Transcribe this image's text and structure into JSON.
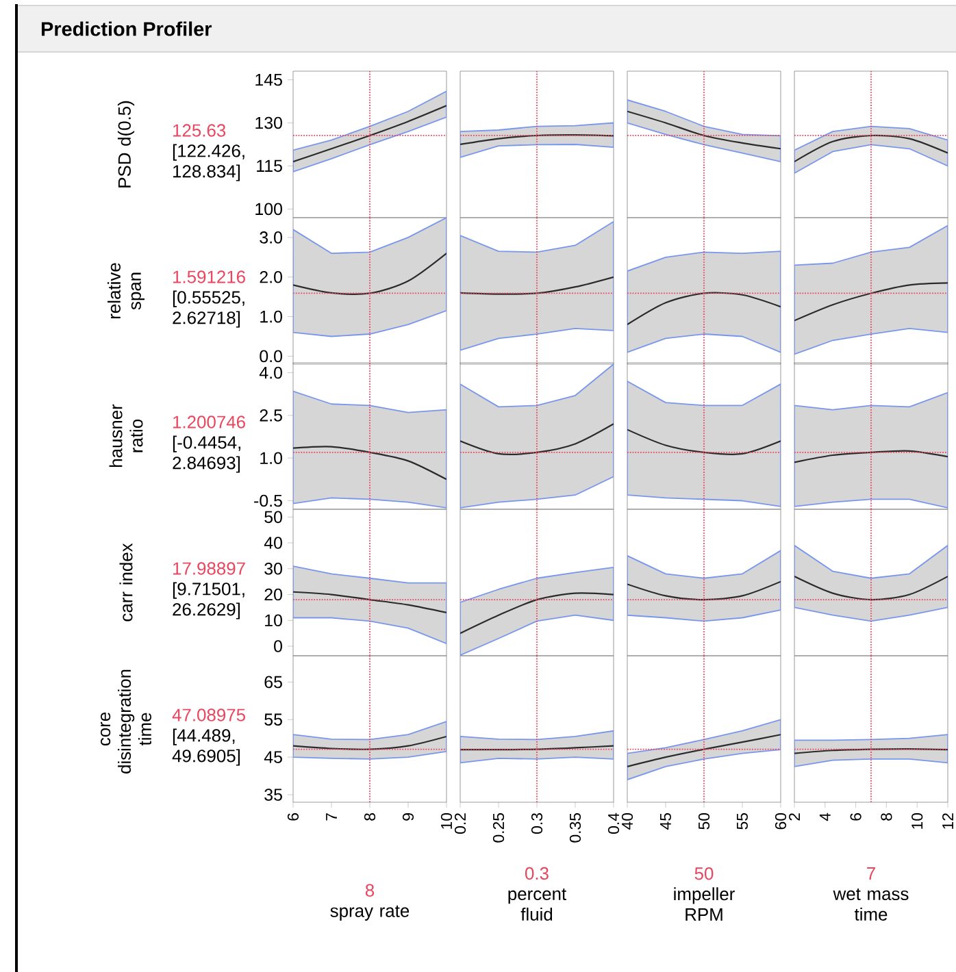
{
  "chart_data": [
    {
      "type": "line",
      "title": "Prediction Profiler",
      "ylabel": "PSD d(0.5)",
      "annotations": [
        "[122.426, 128.834]"
      ],
      "tick_labels": "y",
      "x": [
        6,
        7,
        8,
        9,
        10
      ],
      "xlim": [
        6,
        10
      ],
      "ylim": [
        97,
        148
      ],
      "yticks": [
        100,
        115,
        130,
        145
      ],
      "series": [
        {
          "color": "#2b2b2b",
          "values": [
            116.5,
            121,
            125.6,
            130.5,
            136
          ],
          "lower": [
            113,
            117.5,
            122.4,
            127,
            132
          ],
          "upper": [
            120.5,
            124,
            128.8,
            134,
            141
          ]
        }
      ],
      "ref_lines": [
        {
          "axis": "x",
          "value": 8,
          "color": "#e8475f",
          "line_style": "dotted"
        },
        {
          "axis": "y",
          "value": 125.63,
          "label": "125.63",
          "color": "#e8475f",
          "line_style": "dotted"
        }
      ]
    },
    {
      "type": "line",
      "tick_labels": false,
      "x": [
        0.2,
        0.25,
        0.3,
        0.35,
        0.4
      ],
      "xlim": [
        0.2,
        0.4
      ],
      "ylim": [
        97,
        148
      ],
      "series": [
        {
          "color": "#2b2b2b",
          "values": [
            122.5,
            124.5,
            125.6,
            125.8,
            125.5
          ],
          "lower": [
            118,
            122,
            122.4,
            122.5,
            121.5
          ],
          "upper": [
            127,
            127.5,
            128.8,
            129,
            130
          ]
        }
      ],
      "ref_lines": [
        {
          "axis": "x",
          "value": 0.3,
          "color": "#e8475f",
          "line_style": "dotted"
        },
        {
          "axis": "y",
          "value": 125.63,
          "color": "#e8475f",
          "line_style": "dotted"
        }
      ]
    },
    {
      "type": "line",
      "tick_labels": false,
      "x": [
        40,
        45,
        50,
        55,
        60
      ],
      "xlim": [
        40,
        60
      ],
      "ylim": [
        97,
        148
      ],
      "series": [
        {
          "color": "#2b2b2b",
          "values": [
            134,
            130,
            125.6,
            123,
            121
          ],
          "lower": [
            130,
            126,
            122.4,
            119.5,
            116.5
          ],
          "upper": [
            138,
            134,
            128.8,
            126,
            125.5
          ]
        }
      ],
      "ref_lines": [
        {
          "axis": "x",
          "value": 50,
          "color": "#e8475f",
          "line_style": "dotted"
        },
        {
          "axis": "y",
          "value": 125.63,
          "color": "#e8475f",
          "line_style": "dotted"
        }
      ]
    },
    {
      "type": "line",
      "tick_labels": false,
      "x": [
        2,
        4.5,
        7,
        9.5,
        12
      ],
      "xlim": [
        2,
        12
      ],
      "ylim": [
        97,
        148
      ],
      "series": [
        {
          "color": "#2b2b2b",
          "values": [
            116.5,
            123.5,
            125.6,
            124.5,
            119.5
          ],
          "lower": [
            112.5,
            120,
            122.4,
            121,
            115
          ],
          "upper": [
            120.5,
            127,
            128.8,
            128,
            124
          ]
        }
      ],
      "ref_lines": [
        {
          "axis": "x",
          "value": 7,
          "color": "#e8475f",
          "line_style": "dotted"
        },
        {
          "axis": "y",
          "value": 125.63,
          "color": "#e8475f",
          "line_style": "dotted"
        }
      ]
    },
    {
      "type": "line",
      "ylabel": "relative span",
      "annotations": [
        "[0.55525, 2.62718]"
      ],
      "tick_labels": "y",
      "x": [
        6,
        7,
        8,
        9,
        10
      ],
      "xlim": [
        6,
        10
      ],
      "ylim": [
        -0.2,
        3.5
      ],
      "yticks": [
        {
          "value": 0,
          "label": "0.0"
        },
        {
          "value": 1,
          "label": "1.0"
        },
        {
          "value": 2,
          "label": "2.0"
        },
        {
          "value": 3,
          "label": "3.0"
        }
      ],
      "series": [
        {
          "color": "#2b2b2b",
          "values": [
            1.8,
            1.6,
            1.59,
            1.9,
            2.6
          ],
          "lower": [
            0.6,
            0.5,
            0.56,
            0.8,
            1.15
          ],
          "upper": [
            3.2,
            2.6,
            2.63,
            3.0,
            3.5
          ]
        }
      ],
      "ref_lines": [
        {
          "axis": "x",
          "value": 8,
          "color": "#e8475f",
          "line_style": "dotted"
        },
        {
          "axis": "y",
          "value": 1.591216,
          "label": "1.591216",
          "color": "#e8475f",
          "line_style": "dotted"
        }
      ]
    },
    {
      "type": "line",
      "tick_labels": false,
      "x": [
        0.2,
        0.25,
        0.3,
        0.35,
        0.4
      ],
      "xlim": [
        0.2,
        0.4
      ],
      "ylim": [
        -0.2,
        3.5
      ],
      "series": [
        {
          "color": "#2b2b2b",
          "values": [
            1.6,
            1.57,
            1.59,
            1.75,
            2.0
          ],
          "lower": [
            0.15,
            0.45,
            0.56,
            0.7,
            0.65
          ],
          "upper": [
            3.05,
            2.65,
            2.63,
            2.8,
            3.4
          ]
        }
      ],
      "ref_lines": [
        {
          "axis": "x",
          "value": 0.3,
          "color": "#e8475f",
          "line_style": "dotted"
        },
        {
          "axis": "y",
          "value": 1.591216,
          "color": "#e8475f",
          "line_style": "dotted"
        }
      ]
    },
    {
      "type": "line",
      "tick_labels": false,
      "x": [
        40,
        45,
        50,
        55,
        60
      ],
      "xlim": [
        40,
        60
      ],
      "ylim": [
        -0.2,
        3.5
      ],
      "series": [
        {
          "color": "#2b2b2b",
          "values": [
            0.8,
            1.35,
            1.59,
            1.55,
            1.25
          ],
          "lower": [
            0.1,
            0.45,
            0.56,
            0.5,
            0.1
          ],
          "upper": [
            2.15,
            2.5,
            2.63,
            2.6,
            2.65
          ]
        }
      ],
      "ref_lines": [
        {
          "axis": "x",
          "value": 50,
          "color": "#e8475f",
          "line_style": "dotted"
        },
        {
          "axis": "y",
          "value": 1.591216,
          "color": "#e8475f",
          "line_style": "dotted"
        }
      ]
    },
    {
      "type": "line",
      "tick_labels": false,
      "x": [
        2,
        4.5,
        7,
        9.5,
        12
      ],
      "xlim": [
        2,
        12
      ],
      "ylim": [
        -0.2,
        3.5
      ],
      "series": [
        {
          "color": "#2b2b2b",
          "values": [
            0.9,
            1.3,
            1.59,
            1.8,
            1.85
          ],
          "lower": [
            0.05,
            0.4,
            0.56,
            0.7,
            0.6
          ],
          "upper": [
            2.3,
            2.35,
            2.63,
            2.75,
            3.3
          ]
        }
      ],
      "ref_lines": [
        {
          "axis": "x",
          "value": 7,
          "color": "#e8475f",
          "line_style": "dotted"
        },
        {
          "axis": "y",
          "value": 1.591216,
          "color": "#e8475f",
          "line_style": "dotted"
        }
      ]
    },
    {
      "type": "line",
      "ylabel": "hausner ratio",
      "annotations": [
        "[-0.4454, 2.84693]"
      ],
      "tick_labels": "y",
      "x": [
        6,
        7,
        8,
        9,
        10
      ],
      "xlim": [
        6,
        10
      ],
      "ylim": [
        -0.8,
        4.35
      ],
      "yticks": [
        -0.5,
        {
          "value": 1,
          "label": "1.0"
        },
        2.5,
        {
          "value": 4,
          "label": "4.0"
        }
      ],
      "series": [
        {
          "color": "#2b2b2b",
          "values": [
            1.35,
            1.4,
            1.2,
            0.9,
            0.25
          ],
          "lower": [
            -0.6,
            -0.4,
            -0.45,
            -0.55,
            -0.75
          ],
          "upper": [
            3.35,
            2.9,
            2.85,
            2.6,
            2.7
          ]
        }
      ],
      "ref_lines": [
        {
          "axis": "x",
          "value": 8,
          "color": "#e8475f",
          "line_style": "dotted"
        },
        {
          "axis": "y",
          "value": 1.200746,
          "label": "1.200746",
          "color": "#e8475f",
          "line_style": "dotted"
        }
      ]
    },
    {
      "type": "line",
      "tick_labels": false,
      "x": [
        0.2,
        0.25,
        0.3,
        0.35,
        0.4
      ],
      "xlim": [
        0.2,
        0.4
      ],
      "ylim": [
        -0.8,
        4.35
      ],
      "series": [
        {
          "color": "#2b2b2b",
          "values": [
            1.6,
            1.15,
            1.2,
            1.5,
            2.2
          ],
          "lower": [
            -0.75,
            -0.55,
            -0.45,
            -0.3,
            0.35
          ],
          "upper": [
            3.6,
            2.8,
            2.85,
            3.2,
            4.3
          ]
        }
      ],
      "ref_lines": [
        {
          "axis": "x",
          "value": 0.3,
          "color": "#e8475f",
          "line_style": "dotted"
        },
        {
          "axis": "y",
          "value": 1.200746,
          "color": "#e8475f",
          "line_style": "dotted"
        }
      ]
    },
    {
      "type": "line",
      "tick_labels": false,
      "x": [
        40,
        45,
        50,
        55,
        60
      ],
      "xlim": [
        40,
        60
      ],
      "ylim": [
        -0.8,
        4.35
      ],
      "series": [
        {
          "color": "#2b2b2b",
          "values": [
            2.0,
            1.45,
            1.2,
            1.15,
            1.6
          ],
          "lower": [
            -0.3,
            -0.4,
            -0.45,
            -0.5,
            -0.7
          ],
          "upper": [
            3.7,
            2.95,
            2.85,
            2.85,
            3.6
          ]
        }
      ],
      "ref_lines": [
        {
          "axis": "x",
          "value": 50,
          "color": "#e8475f",
          "line_style": "dotted"
        },
        {
          "axis": "y",
          "value": 1.200746,
          "color": "#e8475f",
          "line_style": "dotted"
        }
      ]
    },
    {
      "type": "line",
      "tick_labels": false,
      "x": [
        2,
        4.5,
        7,
        9.5,
        12
      ],
      "xlim": [
        2,
        12
      ],
      "ylim": [
        -0.8,
        4.35
      ],
      "series": [
        {
          "color": "#2b2b2b",
          "values": [
            0.85,
            1.1,
            1.2,
            1.25,
            1.05
          ],
          "lower": [
            -0.7,
            -0.55,
            -0.45,
            -0.45,
            -0.75
          ],
          "upper": [
            2.85,
            2.7,
            2.85,
            2.8,
            3.3
          ]
        }
      ],
      "ref_lines": [
        {
          "axis": "x",
          "value": 7,
          "color": "#e8475f",
          "line_style": "dotted"
        },
        {
          "axis": "y",
          "value": 1.200746,
          "color": "#e8475f",
          "line_style": "dotted"
        }
      ]
    },
    {
      "type": "line",
      "ylabel": "carr index",
      "annotations": [
        "[9.71501, 26.2629]"
      ],
      "tick_labels": "y",
      "x": [
        6,
        7,
        8,
        9,
        10
      ],
      "xlim": [
        6,
        10
      ],
      "ylim": [
        -3.7,
        53
      ],
      "yticks": [
        0,
        10,
        20,
        30,
        40,
        50
      ],
      "series": [
        {
          "color": "#2b2b2b",
          "values": [
            21,
            20,
            18,
            16,
            13
          ],
          "lower": [
            11,
            11,
            9.7,
            7,
            1
          ],
          "upper": [
            31,
            28,
            26.3,
            24.5,
            24.5
          ]
        }
      ],
      "ref_lines": [
        {
          "axis": "x",
          "value": 8,
          "color": "#e8475f",
          "line_style": "dotted"
        },
        {
          "axis": "y",
          "value": 17.98897,
          "label": "17.98897",
          "color": "#e8475f",
          "line_style": "dotted"
        }
      ]
    },
    {
      "type": "line",
      "tick_labels": false,
      "x": [
        0.2,
        0.25,
        0.3,
        0.35,
        0.4
      ],
      "xlim": [
        0.2,
        0.4
      ],
      "ylim": [
        -3.7,
        53
      ],
      "series": [
        {
          "color": "#2b2b2b",
          "values": [
            5,
            12,
            18,
            20.5,
            20
          ],
          "lower": [
            -3.5,
            3,
            9.7,
            12,
            10
          ],
          "upper": [
            17,
            22,
            26.3,
            28.5,
            30.5
          ]
        }
      ],
      "ref_lines": [
        {
          "axis": "x",
          "value": 0.3,
          "color": "#e8475f",
          "line_style": "dotted"
        },
        {
          "axis": "y",
          "value": 17.98897,
          "color": "#e8475f",
          "line_style": "dotted"
        }
      ]
    },
    {
      "type": "line",
      "tick_labels": false,
      "x": [
        40,
        45,
        50,
        55,
        60
      ],
      "xlim": [
        40,
        60
      ],
      "ylim": [
        -3.7,
        53
      ],
      "series": [
        {
          "color": "#2b2b2b",
          "values": [
            24,
            19.5,
            18,
            19.5,
            25
          ],
          "lower": [
            12,
            11,
            9.7,
            11,
            14
          ],
          "upper": [
            35,
            28,
            26.3,
            28,
            37
          ]
        }
      ],
      "ref_lines": [
        {
          "axis": "x",
          "value": 50,
          "color": "#e8475f",
          "line_style": "dotted"
        },
        {
          "axis": "y",
          "value": 17.98897,
          "color": "#e8475f",
          "line_style": "dotted"
        }
      ]
    },
    {
      "type": "line",
      "tick_labels": false,
      "x": [
        2,
        4.5,
        7,
        9.5,
        12
      ],
      "xlim": [
        2,
        12
      ],
      "ylim": [
        -3.7,
        53
      ],
      "series": [
        {
          "color": "#2b2b2b",
          "values": [
            27,
            20.5,
            18,
            20,
            27
          ],
          "lower": [
            15,
            12,
            9.7,
            12,
            15
          ],
          "upper": [
            39,
            29,
            26.3,
            28,
            39
          ]
        }
      ],
      "ref_lines": [
        {
          "axis": "x",
          "value": 7,
          "color": "#e8475f",
          "line_style": "dotted"
        },
        {
          "axis": "y",
          "value": 17.98897,
          "color": "#e8475f",
          "line_style": "dotted"
        }
      ]
    },
    {
      "type": "line",
      "ylabel": "core disintegration time",
      "xlabel": "spray rate",
      "annotations": [
        "[44.489, 49.6905]"
      ],
      "x": [
        6,
        7,
        8,
        9,
        10
      ],
      "xlim": [
        6,
        10
      ],
      "ylim": [
        33,
        72
      ],
      "xticks": [
        6,
        7,
        8,
        9,
        10
      ],
      "yticks": [
        35,
        45,
        55,
        65
      ],
      "series": [
        {
          "color": "#2b2b2b",
          "values": [
            48,
            47.3,
            47.1,
            48,
            50.5
          ],
          "lower": [
            45,
            44.7,
            44.5,
            45,
            46.5
          ],
          "upper": [
            51,
            49.8,
            49.7,
            51,
            54.5
          ]
        }
      ],
      "ref_lines": [
        {
          "axis": "x",
          "value": 8,
          "label": "8",
          "color": "#e8475f",
          "line_style": "dotted"
        },
        {
          "axis": "y",
          "value": 47.08975,
          "label": "47.08975",
          "color": "#e8475f",
          "line_style": "dotted"
        }
      ]
    },
    {
      "type": "line",
      "xlabel": "percent fluid",
      "tick_labels": "x",
      "x": [
        0.2,
        0.25,
        0.3,
        0.35,
        0.4
      ],
      "xlim": [
        0.2,
        0.4
      ],
      "ylim": [
        33,
        72
      ],
      "xticks": [
        0.2,
        0.25,
        0.3,
        0.35,
        0.4
      ],
      "series": [
        {
          "color": "#2b2b2b",
          "values": [
            47,
            47,
            47.1,
            47.5,
            48
          ],
          "lower": [
            43.5,
            44.7,
            44.5,
            45,
            44.5
          ],
          "upper": [
            50.5,
            49.8,
            49.7,
            50.5,
            52
          ]
        }
      ],
      "ref_lines": [
        {
          "axis": "x",
          "value": 0.3,
          "label": "0.3",
          "color": "#e8475f",
          "line_style": "dotted"
        },
        {
          "axis": "y",
          "value": 47.08975,
          "color": "#e8475f",
          "line_style": "dotted"
        }
      ]
    },
    {
      "type": "line",
      "xlabel": "impeller RPM",
      "tick_labels": "x",
      "x": [
        40,
        45,
        50,
        55,
        60
      ],
      "xlim": [
        40,
        60
      ],
      "ylim": [
        33,
        72
      ],
      "xticks": [
        40,
        45,
        50,
        55,
        60
      ],
      "series": [
        {
          "color": "#2b2b2b",
          "values": [
            42.5,
            45,
            47.1,
            49,
            51
          ],
          "lower": [
            39,
            42.5,
            44.5,
            46,
            47
          ],
          "upper": [
            46,
            47.5,
            49.7,
            52,
            55
          ]
        }
      ],
      "ref_lines": [
        {
          "axis": "x",
          "value": 50,
          "label": "50",
          "color": "#e8475f",
          "line_style": "dotted"
        },
        {
          "axis": "y",
          "value": 47.08975,
          "color": "#e8475f",
          "line_style": "dotted"
        }
      ]
    },
    {
      "type": "line",
      "xlabel": "wet mass time",
      "tick_labels": "x",
      "x": [
        2,
        4.5,
        7,
        9.5,
        12
      ],
      "xlim": [
        2,
        12
      ],
      "ylim": [
        33,
        72
      ],
      "xticks": [
        2,
        4,
        6,
        8,
        10,
        12
      ],
      "series": [
        {
          "color": "#2b2b2b",
          "values": [
            46,
            46.8,
            47.1,
            47.2,
            47
          ],
          "lower": [
            42.5,
            44.2,
            44.5,
            44.5,
            43.5
          ],
          "upper": [
            49.5,
            49.5,
            49.7,
            50,
            51
          ]
        }
      ],
      "ref_lines": [
        {
          "axis": "x",
          "value": 7,
          "label": "7",
          "color": "#e8475f",
          "line_style": "dotted"
        },
        {
          "axis": "y",
          "value": 47.08975,
          "color": "#e8475f",
          "line_style": "dotted"
        }
      ]
    }
  ]
}
